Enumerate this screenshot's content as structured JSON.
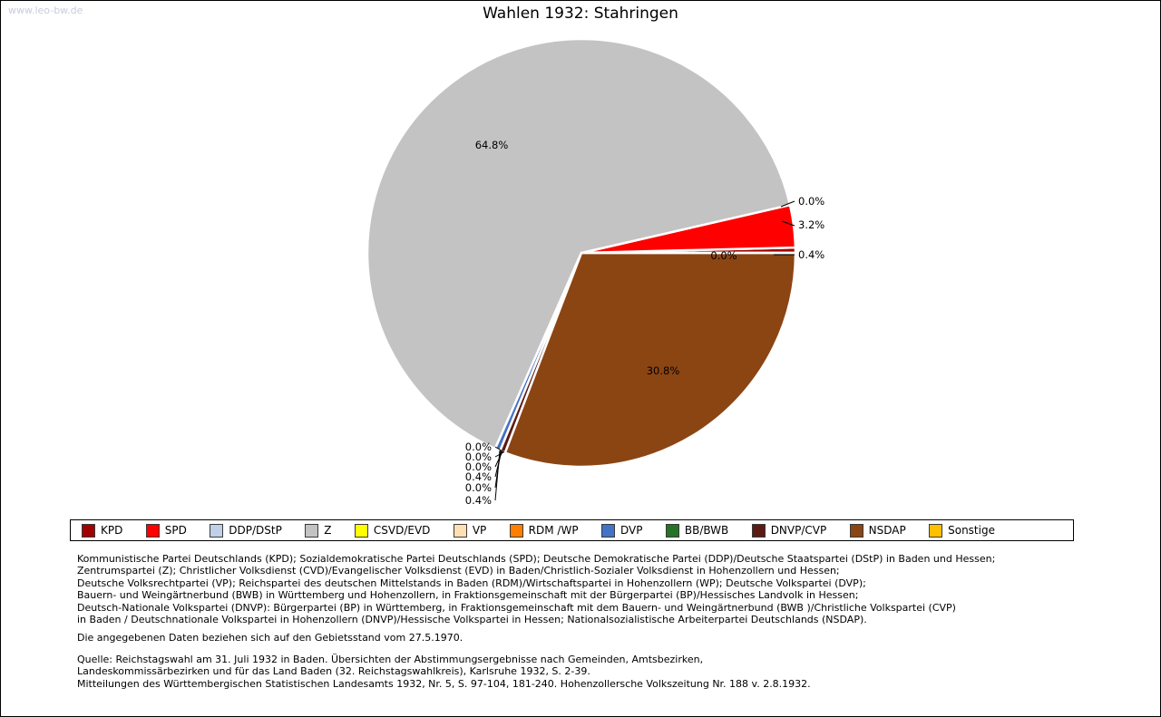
{
  "page": {
    "watermark": "www.leo-bw.de"
  },
  "chart_data": {
    "type": "pie",
    "title": "Wahlen 1932: Stahringen",
    "unit": "%",
    "start_angle_clockwise_from_north_deg": 90,
    "direction": "counterclockwise",
    "legend_position": "bottom",
    "slices": [
      {
        "party": "KPD",
        "value": 0.4,
        "color": "#a00000"
      },
      {
        "party": "SPD",
        "value": 3.2,
        "color": "#ff0000"
      },
      {
        "party": "DDP/DStP",
        "value": 0.0,
        "color": "#bfd0e8"
      },
      {
        "party": "Z",
        "value": 64.8,
        "color": "#c3c3c3"
      },
      {
        "party": "CSVD/EVD",
        "value": 0.0,
        "color": "#ffff00"
      },
      {
        "party": "VP",
        "value": 0.0,
        "color": "#ffe0b3"
      },
      {
        "party": "RDM /WP",
        "value": 0.0,
        "color": "#ff8000"
      },
      {
        "party": "DVP",
        "value": 0.4,
        "color": "#4472c4"
      },
      {
        "party": "BB/BWB",
        "value": 0.0,
        "color": "#267326"
      },
      {
        "party": "DNVP/CVP",
        "value": 0.4,
        "color": "#5c1a14"
      },
      {
        "party": "NSDAP",
        "value": 30.8,
        "color": "#8b4513"
      },
      {
        "party": "Sonstige",
        "value": 0.0,
        "color": "#ffc000"
      }
    ]
  },
  "footnotes": {
    "party_definitions": [
      "Kommunistische Partei Deutschlands (KPD); Sozialdemokratische Partei Deutschlands (SPD); Deutsche Demokratische Partei (DDP)/Deutsche Staatspartei (DStP) in Baden und Hessen;",
      "Zentrumspartei (Z); Christlicher Volksdienst (CVD)/Evangelischer Volksdienst (EVD) in Baden/Christlich-Sozialer Volksdienst in Hohenzollern und Hessen;",
      "Deutsche Volksrechtpartei (VP); Reichspartei des deutschen Mittelstands in Baden (RDM)/Wirtschaftspartei in Hohenzollern (WP); Deutsche Volkspartei (DVP);",
      "Bauern- und Weingärtnerbund (BWB) in Württemberg und Hohenzollern, in Fraktionsgemeinschaft mit der Bürgerpartei (BP)/Hessisches Landvolk in Hessen;",
      "Deutsch-Nationale Volkspartei (DNVP): Bürgerpartei (BP) in Württemberg, in Fraktionsgemeinschaft mit dem Bauern- und Weingärtnerbund (BWB )/Christliche Volkspartei (CVP)",
      "in Baden / Deutschnationale Volkspartei in Hohenzollern (DNVP)/Hessische Volkspartei in Hessen; Nationalsozialistische Arbeiterpartei Deutschlands (NSDAP)."
    ],
    "territorial_note": "Die angegebenen Daten beziehen sich auf den Gebietsstand vom 27.5.1970.",
    "source_lines": [
      "Quelle: Reichstagswahl am 31. Juli 1932 in Baden. Übersichten der Abstimmungsergebnisse nach Gemeinden, Amtsbezirken,",
      "Landeskommissärbezirken und für das Land Baden (32. Reichstagswahlkreis), Karlsruhe 1932, S. 2-39.",
      "Mitteilungen des Württembergischen Statistischen Landesamts 1932, Nr. 5, S. 97-104, 181-240. Hohenzollersche Volkszeitung Nr. 188 v. 2.8.1932."
    ]
  }
}
